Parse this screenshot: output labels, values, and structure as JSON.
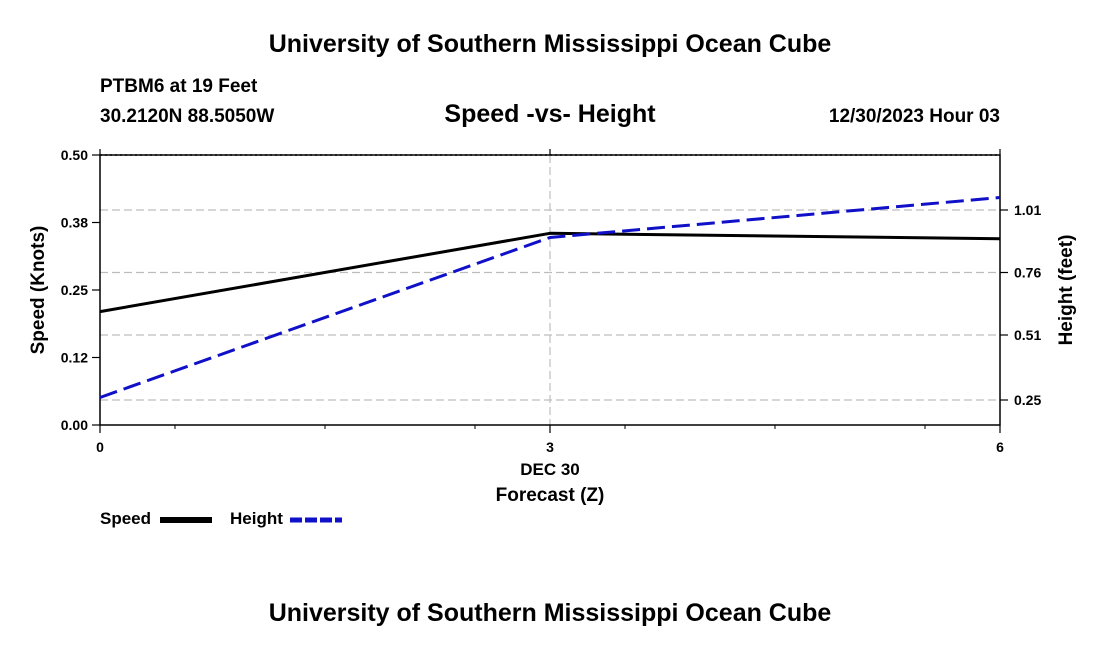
{
  "header": {
    "title_top": "University of Southern Mississippi Ocean Cube",
    "station": "PTBM6 at 19 Feet",
    "coords": "30.2120N  88.5050W",
    "subtitle": "Speed -vs- Height",
    "datetime": "12/30/2023 Hour 03",
    "title_bottom": "University of Southern Mississippi Ocean Cube"
  },
  "chart_data": {
    "type": "line",
    "x": [
      0,
      3,
      6
    ],
    "x_ticks": [
      "0",
      "3",
      "6"
    ],
    "x_sublabel": "DEC 30",
    "xlabel": "Forecast (Z)",
    "xlim": [
      0,
      6
    ],
    "ylabel_left": "Speed (Knots)",
    "ylim_left": [
      0,
      0.5
    ],
    "y_ticks_left": [
      "0.00",
      "0.12",
      "0.25",
      "0.38",
      "0.50"
    ],
    "ylabel_right": "Height (feet)",
    "ylim_right": [
      0.15,
      1.23
    ],
    "y_ticks_right": [
      "0.25",
      "0.51",
      "0.76",
      "1.01"
    ],
    "y_ticks_right_values": [
      0.25,
      0.51,
      0.76,
      1.01
    ],
    "grid": true,
    "legend_position": "bottom-left",
    "series": [
      {
        "name": "Speed",
        "axis": "left",
        "color": "#000000",
        "style": "solid",
        "values": [
          0.21,
          0.355,
          0.345
        ]
      },
      {
        "name": "Height",
        "axis": "right",
        "color": "#1010c8",
        "style": "dashed",
        "values": [
          0.26,
          0.9,
          1.06
        ]
      }
    ]
  }
}
